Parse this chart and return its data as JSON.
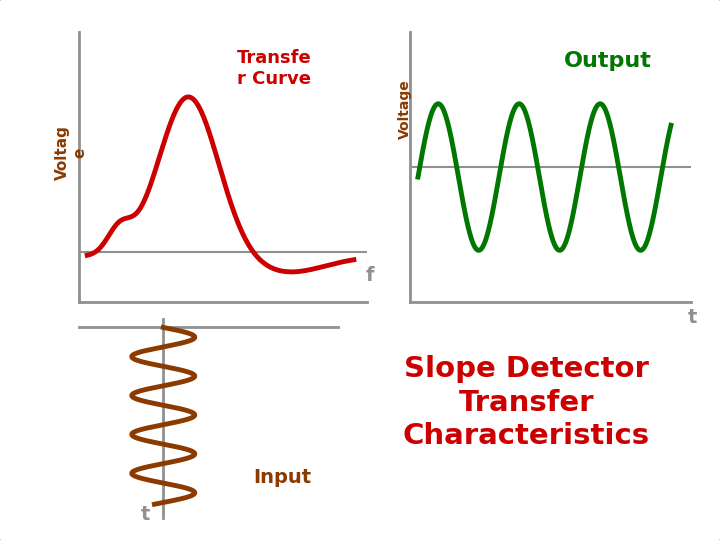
{
  "bg_color": "#ffffff",
  "border_color": "#b0b0b0",
  "axis_color": "#909090",
  "transfer_curve_color": "#cc0000",
  "output_color": "#007700",
  "input_color": "#8B3A00",
  "label_color": "#909090",
  "voltage_label_color": "#8B3A00",
  "slope_text_color": "#cc0000",
  "output_label_color": "#007700",
  "title": "Slope Detector\nTransfer\nCharacteristics",
  "transfer_curve_label": "Transfe\nr Curve",
  "output_label": "Output",
  "input_label": "Input",
  "voltage_label1": "Voltag\ne",
  "voltage_label2": "Voltage",
  "f_label": "f",
  "t_label_top": "t",
  "t_label_bottom": "t"
}
